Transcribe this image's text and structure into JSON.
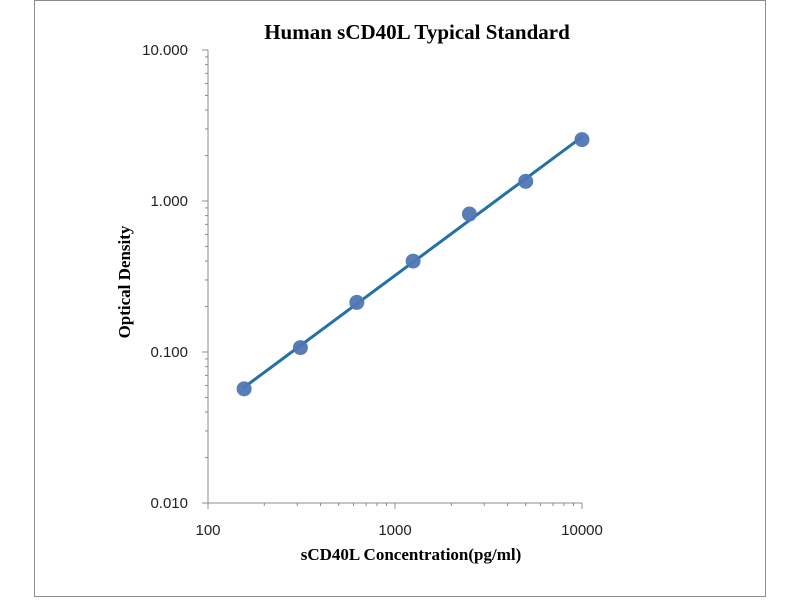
{
  "chart_data": {
    "type": "scatter",
    "title": "Human sCD40L Typical Standard",
    "xlabel": "sCD40L Concentration(pg/ml)",
    "ylabel": "Optical Density",
    "x_scale": "log",
    "y_scale": "log",
    "xlim": [
      100,
      10000
    ],
    "ylim": [
      0.01,
      10
    ],
    "x_ticks": [
      "100",
      "1000",
      "10000"
    ],
    "y_ticks": [
      "10.000",
      "1.000",
      "0.100",
      "0.010"
    ],
    "grid": false,
    "legend": "none",
    "series": [
      {
        "x": [
          156,
          312,
          625,
          1250,
          2500,
          5000,
          10000
        ],
        "y": [
          0.057,
          0.107,
          0.213,
          0.4,
          0.82,
          1.35,
          2.55
        ],
        "marker_color": "#4f76b5",
        "trendline_color": "#2471a3"
      }
    ]
  }
}
